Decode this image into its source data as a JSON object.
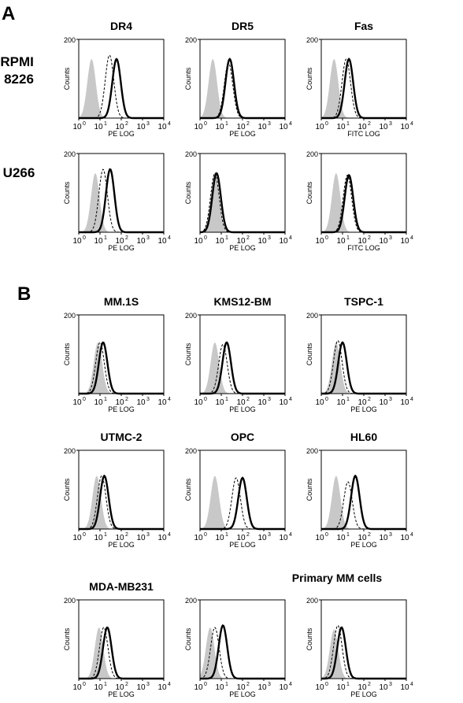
{
  "panels": [
    {
      "letter": "A",
      "row_labels": [
        "RPMI\n8226",
        "U266"
      ]
    },
    {
      "letter": "B",
      "group_label": "Primary MM cells"
    }
  ],
  "shared": {
    "ylabel": "Counts",
    "ymax_label": "200",
    "xtick_base": "10",
    "xtick_exponents": [
      "0",
      "1",
      "2",
      "3",
      "4"
    ],
    "isotype_fill_color": "#c8c8c8",
    "thick_curve_color": "#000000",
    "dashed_curve_color": "#000000"
  },
  "chart_data": [
    {
      "id": "A-RPMI-DR4",
      "type": "area",
      "title": "DR4",
      "xlabel": "PE LOG",
      "ylabel": "Counts",
      "xscale": "log",
      "xlim": [
        1,
        10000
      ],
      "ylim": [
        0,
        200
      ],
      "series": [
        {
          "role": "isotype-filled",
          "peak_x": 4,
          "peak_y": 150
        },
        {
          "role": "dashed",
          "peak_x": 28,
          "peak_y": 160
        },
        {
          "role": "thick",
          "peak_x": 60,
          "peak_y": 150
        }
      ]
    },
    {
      "id": "A-RPMI-DR5",
      "type": "area",
      "title": "DR5",
      "xlabel": "PE LOG",
      "ylabel": "Counts",
      "xscale": "log",
      "xlim": [
        1,
        10000
      ],
      "ylim": [
        0,
        200
      ],
      "series": [
        {
          "role": "isotype-filled",
          "peak_x": 4,
          "peak_y": 150
        },
        {
          "role": "dashed",
          "peak_x": 22,
          "peak_y": 140
        },
        {
          "role": "thick",
          "peak_x": 25,
          "peak_y": 150
        }
      ]
    },
    {
      "id": "A-RPMI-Fas",
      "type": "area",
      "title": "Fas",
      "xlabel": "FITC LOG",
      "ylabel": "Counts",
      "xscale": "log",
      "xlim": [
        1,
        10000
      ],
      "ylim": [
        0,
        200
      ],
      "series": [
        {
          "role": "isotype-filled",
          "peak_x": 4,
          "peak_y": 150
        },
        {
          "role": "dashed",
          "peak_x": 15,
          "peak_y": 150
        },
        {
          "role": "thick",
          "peak_x": 20,
          "peak_y": 150
        }
      ]
    },
    {
      "id": "A-U266-DR4",
      "type": "area",
      "title": "",
      "xlabel": "PE LOG",
      "ylabel": "Counts",
      "xscale": "log",
      "xlim": [
        1,
        10000
      ],
      "ylim": [
        0,
        200
      ],
      "series": [
        {
          "role": "isotype-filled",
          "peak_x": 6,
          "peak_y": 150
        },
        {
          "role": "dashed",
          "peak_x": 14,
          "peak_y": 160
        },
        {
          "role": "thick",
          "peak_x": 30,
          "peak_y": 160
        }
      ]
    },
    {
      "id": "A-U266-DR5",
      "type": "area",
      "title": "",
      "xlabel": "PE LOG",
      "ylabel": "Counts",
      "xscale": "log",
      "xlim": [
        1,
        10000
      ],
      "ylim": [
        0,
        200
      ],
      "series": [
        {
          "role": "isotype-filled",
          "peak_x": 5,
          "peak_y": 150
        },
        {
          "role": "dashed",
          "peak_x": 5,
          "peak_y": 150
        },
        {
          "role": "thick",
          "peak_x": 6,
          "peak_y": 150
        }
      ]
    },
    {
      "id": "A-U266-Fas",
      "type": "area",
      "title": "",
      "xlabel": "FITC LOG",
      "ylabel": "Counts",
      "xscale": "log",
      "xlim": [
        1,
        10000
      ],
      "ylim": [
        0,
        200
      ],
      "series": [
        {
          "role": "isotype-filled",
          "peak_x": 5,
          "peak_y": 150
        },
        {
          "role": "dashed",
          "peak_x": 17,
          "peak_y": 145
        },
        {
          "role": "thick",
          "peak_x": 20,
          "peak_y": 145
        }
      ]
    },
    {
      "id": "B-MM1S",
      "type": "area",
      "title": "MM.1S",
      "xlabel": "PE LOG",
      "ylabel": "Counts",
      "xscale": "log",
      "xlim": [
        1,
        10000
      ],
      "ylim": [
        0,
        200
      ],
      "series": [
        {
          "role": "isotype-filled",
          "peak_x": 8,
          "peak_y": 130
        },
        {
          "role": "dashed",
          "peak_x": 10,
          "peak_y": 130
        },
        {
          "role": "thick",
          "peak_x": 14,
          "peak_y": 130
        }
      ]
    },
    {
      "id": "B-KMS12BM",
      "type": "area",
      "title": "KMS12-BM",
      "xlabel": "PE LOG",
      "ylabel": "Counts",
      "xscale": "log",
      "xlim": [
        1,
        10000
      ],
      "ylim": [
        0,
        200
      ],
      "series": [
        {
          "role": "isotype-filled",
          "peak_x": 5,
          "peak_y": 130
        },
        {
          "role": "dashed",
          "peak_x": 12,
          "peak_y": 125
        },
        {
          "role": "thick",
          "peak_x": 18,
          "peak_y": 130
        }
      ]
    },
    {
      "id": "B-TSPC1",
      "type": "area",
      "title": "TSPC-1",
      "xlabel": "PE LOG",
      "ylabel": "Counts",
      "xscale": "log",
      "xlim": [
        1,
        10000
      ],
      "ylim": [
        0,
        200
      ],
      "series": [
        {
          "role": "isotype-filled",
          "peak_x": 5,
          "peak_y": 130
        },
        {
          "role": "dashed",
          "peak_x": 6,
          "peak_y": 135
        },
        {
          "role": "thick",
          "peak_x": 10,
          "peak_y": 130
        }
      ]
    },
    {
      "id": "B-UTMC2",
      "type": "area",
      "title": "UTMC-2",
      "xlabel": "PE LOG",
      "ylabel": "Counts",
      "xscale": "log",
      "xlim": [
        1,
        10000
      ],
      "ylim": [
        0,
        200
      ],
      "series": [
        {
          "role": "isotype-filled",
          "peak_x": 7,
          "peak_y": 135
        },
        {
          "role": "dashed",
          "peak_x": 12,
          "peak_y": 135
        },
        {
          "role": "thick",
          "peak_x": 16,
          "peak_y": 135
        }
      ]
    },
    {
      "id": "B-OPC",
      "type": "area",
      "title": "OPC",
      "xlabel": "PE LOG",
      "ylabel": "Counts",
      "xscale": "log",
      "xlim": [
        1,
        10000
      ],
      "ylim": [
        0,
        200
      ],
      "series": [
        {
          "role": "isotype-filled",
          "peak_x": 5,
          "peak_y": 135
        },
        {
          "role": "dashed",
          "peak_x": 50,
          "peak_y": 130
        },
        {
          "role": "thick",
          "peak_x": 100,
          "peak_y": 130
        }
      ]
    },
    {
      "id": "B-HL60",
      "type": "area",
      "title": "HL60",
      "xlabel": "PE LOG",
      "ylabel": "Counts",
      "xscale": "log",
      "xlim": [
        1,
        10000
      ],
      "ylim": [
        0,
        200
      ],
      "series": [
        {
          "role": "isotype-filled",
          "peak_x": 5,
          "peak_y": 135
        },
        {
          "role": "dashed",
          "peak_x": 18,
          "peak_y": 120
        },
        {
          "role": "thick",
          "peak_x": 40,
          "peak_y": 135
        }
      ]
    },
    {
      "id": "B-MDAMB231",
      "type": "area",
      "title": "MDA-MB231",
      "xlabel": "PE LOG",
      "ylabel": "Counts",
      "xscale": "log",
      "xlim": [
        1,
        10000
      ],
      "ylim": [
        0,
        200
      ],
      "series": [
        {
          "role": "isotype-filled",
          "peak_x": 9,
          "peak_y": 130
        },
        {
          "role": "dashed",
          "peak_x": 15,
          "peak_y": 130
        },
        {
          "role": "thick",
          "peak_x": 22,
          "peak_y": 130
        }
      ]
    },
    {
      "id": "B-Primary1",
      "type": "area",
      "title": "",
      "xlabel": "PE LOG",
      "ylabel": "Counts",
      "xscale": "log",
      "xlim": [
        1,
        10000
      ],
      "ylim": [
        0,
        200
      ],
      "series": [
        {
          "role": "isotype-filled",
          "peak_x": 3,
          "peak_y": 130
        },
        {
          "role": "dashed",
          "peak_x": 5,
          "peak_y": 130
        },
        {
          "role": "thick",
          "peak_x": 12,
          "peak_y": 135
        }
      ]
    },
    {
      "id": "B-Primary2",
      "type": "area",
      "title": "",
      "xlabel": "PE LOG",
      "ylabel": "Counts",
      "xscale": "log",
      "xlim": [
        1,
        10000
      ],
      "ylim": [
        0,
        200
      ],
      "series": [
        {
          "role": "isotype-filled",
          "peak_x": 4,
          "peak_y": 125
        },
        {
          "role": "dashed",
          "peak_x": 6,
          "peak_y": 135
        },
        {
          "role": "thick",
          "peak_x": 9,
          "peak_y": 130
        }
      ]
    }
  ]
}
